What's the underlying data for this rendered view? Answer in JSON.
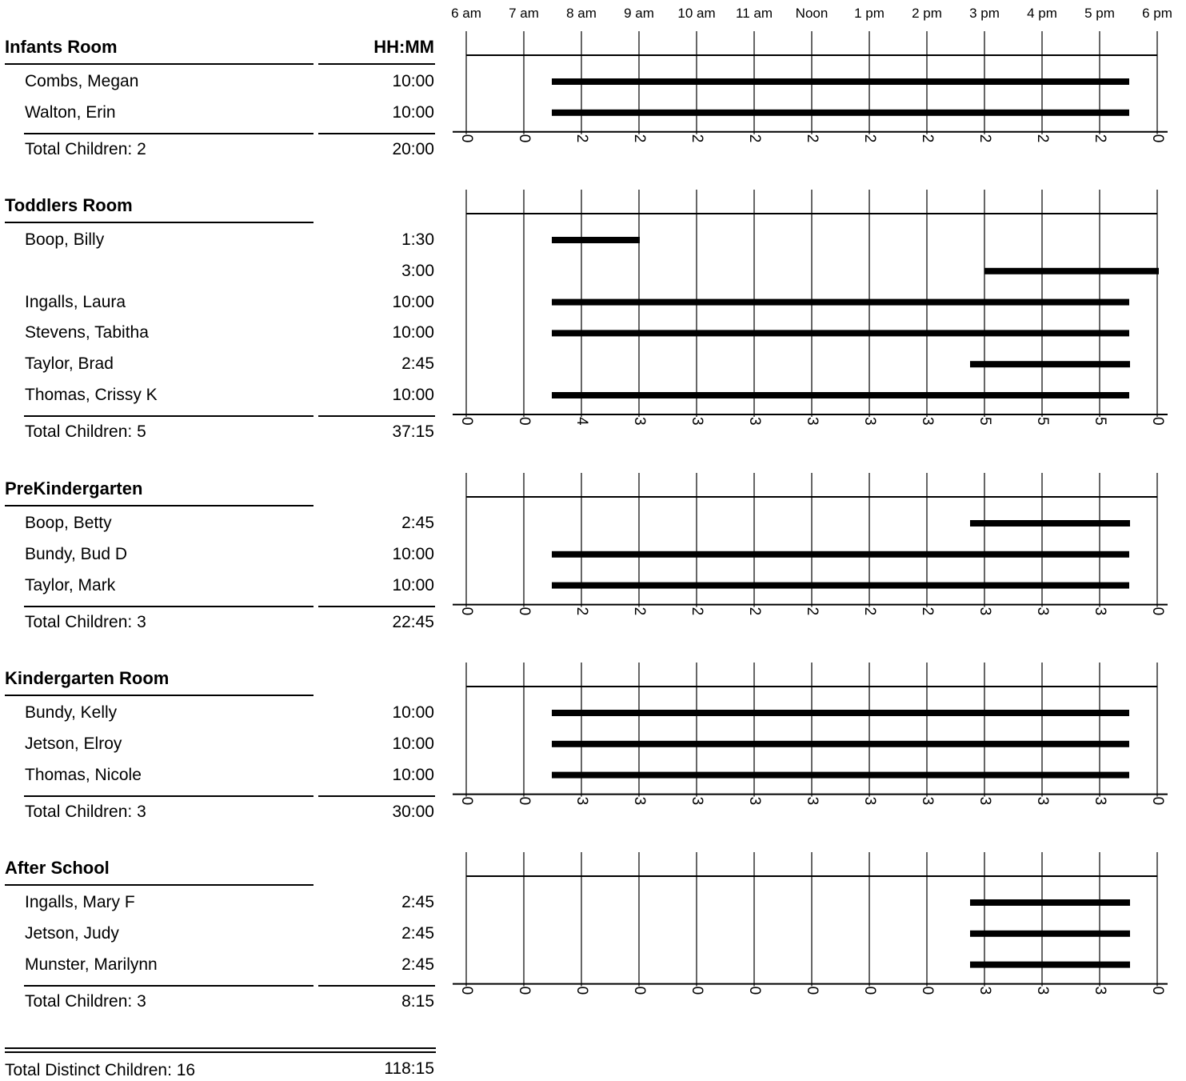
{
  "header": {
    "hhmm_label": "HH:MM"
  },
  "chart_data": {
    "type": "timeline",
    "x_axis": {
      "start_hour": 6,
      "end_hour": 18,
      "tick_labels": [
        "6 am",
        "7 am",
        "8 am",
        "9 am",
        "10 am",
        "11 am",
        "Noon",
        "1 pm",
        "2 pm",
        "3 pm",
        "4 pm",
        "5 pm",
        "6 pm"
      ]
    },
    "rooms": [
      {
        "name": "Infants Room",
        "show_hhmm_header": true,
        "rows": [
          {
            "child": "Combs, Megan",
            "duration": "10:00",
            "start": 7.5,
            "end": 17.5
          },
          {
            "child": "Walton, Erin",
            "duration": "10:00",
            "start": 7.5,
            "end": 17.5
          }
        ],
        "total_label": "Total Children: 2",
        "total_duration": "20:00",
        "hourly_counts": [
          "0",
          "0",
          "2",
          "2",
          "2",
          "2",
          "2",
          "2",
          "2",
          "2",
          "2",
          "2",
          "0"
        ]
      },
      {
        "name": "Toddlers Room",
        "show_hhmm_header": false,
        "rows": [
          {
            "child": "Boop, Billy",
            "duration": "1:30",
            "start": 7.5,
            "end": 9.0
          },
          {
            "child": "",
            "duration": "3:00",
            "start": 15.0,
            "end": 18.0
          },
          {
            "child": "Ingalls, Laura",
            "duration": "10:00",
            "start": 7.5,
            "end": 17.5
          },
          {
            "child": "Stevens, Tabitha",
            "duration": "10:00",
            "start": 7.5,
            "end": 17.5
          },
          {
            "child": "Taylor, Brad",
            "duration": "2:45",
            "start": 14.75,
            "end": 17.5
          },
          {
            "child": "Thomas, Crissy K",
            "duration": "10:00",
            "start": 7.5,
            "end": 17.5
          }
        ],
        "total_label": "Total Children: 5",
        "total_duration": "37:15",
        "hourly_counts": [
          "0",
          "0",
          "4",
          "3",
          "3",
          "3",
          "3",
          "3",
          "3",
          "5",
          "5",
          "5",
          "0"
        ]
      },
      {
        "name": "PreKindergarten",
        "show_hhmm_header": false,
        "rows": [
          {
            "child": "Boop, Betty",
            "duration": "2:45",
            "start": 14.75,
            "end": 17.5
          },
          {
            "child": "Bundy, Bud D",
            "duration": "10:00",
            "start": 7.5,
            "end": 17.5
          },
          {
            "child": "Taylor, Mark",
            "duration": "10:00",
            "start": 7.5,
            "end": 17.5
          }
        ],
        "total_label": "Total Children: 3",
        "total_duration": "22:45",
        "hourly_counts": [
          "0",
          "0",
          "2",
          "2",
          "2",
          "2",
          "2",
          "2",
          "2",
          "3",
          "3",
          "3",
          "0"
        ]
      },
      {
        "name": "Kindergarten Room",
        "show_hhmm_header": false,
        "rows": [
          {
            "child": "Bundy, Kelly",
            "duration": "10:00",
            "start": 7.5,
            "end": 17.5
          },
          {
            "child": "Jetson, Elroy",
            "duration": "10:00",
            "start": 7.5,
            "end": 17.5
          },
          {
            "child": "Thomas, Nicole",
            "duration": "10:00",
            "start": 7.5,
            "end": 17.5
          }
        ],
        "total_label": "Total Children: 3",
        "total_duration": "30:00",
        "hourly_counts": [
          "0",
          "0",
          "3",
          "3",
          "3",
          "3",
          "3",
          "3",
          "3",
          "3",
          "3",
          "3",
          "0"
        ]
      },
      {
        "name": "After School",
        "show_hhmm_header": false,
        "rows": [
          {
            "child": "Ingalls, Mary F",
            "duration": "2:45",
            "start": 14.75,
            "end": 17.5
          },
          {
            "child": "Jetson, Judy",
            "duration": "2:45",
            "start": 14.75,
            "end": 17.5
          },
          {
            "child": "Munster, Marilynn",
            "duration": "2:45",
            "start": 14.75,
            "end": 17.5
          }
        ],
        "total_label": "Total Children: 3",
        "total_duration": "8:15",
        "hourly_counts": [
          "0",
          "0",
          "0",
          "0",
          "0",
          "0",
          "0",
          "0",
          "0",
          "3",
          "3",
          "3",
          "0"
        ]
      }
    ],
    "grand_total": {
      "label": "Total Distinct Children: 16",
      "duration": "118:15"
    }
  }
}
